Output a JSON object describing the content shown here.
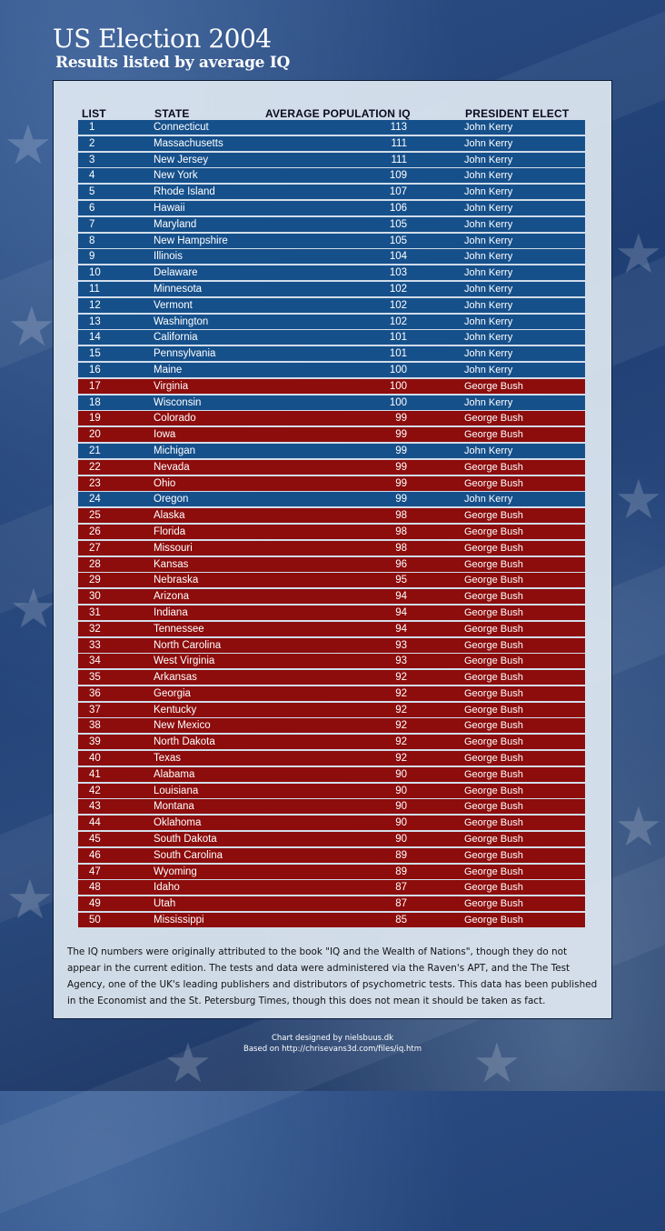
{
  "title": "US Election 2004",
  "subtitle": "Results listed by average IQ",
  "colors": {
    "kerry": "#16508b",
    "bush": "#8d0c0c"
  },
  "chart_data": {
    "type": "table",
    "columns": [
      "LIST",
      "STATE",
      "AVERAGE POPULATION IQ",
      "PRESIDENT ELECT"
    ],
    "rows": [
      {
        "rank": "1",
        "state": "Connecticut",
        "iq": "113",
        "president": "John Kerry"
      },
      {
        "rank": "2",
        "state": "Massachusetts",
        "iq": "111",
        "president": "John Kerry"
      },
      {
        "rank": "3",
        "state": "New Jersey",
        "iq": "111",
        "president": "John Kerry"
      },
      {
        "rank": "4",
        "state": "New York",
        "iq": "109",
        "president": "John Kerry"
      },
      {
        "rank": "5",
        "state": "Rhode Island",
        "iq": "107",
        "president": "John Kerry"
      },
      {
        "rank": "6",
        "state": "Hawaii",
        "iq": "106",
        "president": "John Kerry"
      },
      {
        "rank": "7",
        "state": "Maryland",
        "iq": "105",
        "president": "John Kerry"
      },
      {
        "rank": "8",
        "state": "New Hampshire",
        "iq": "105",
        "president": "John Kerry"
      },
      {
        "rank": "9",
        "state": "Illinois",
        "iq": "104",
        "president": "John Kerry"
      },
      {
        "rank": "10",
        "state": "Delaware",
        "iq": "103",
        "president": "John Kerry"
      },
      {
        "rank": "11",
        "state": "Minnesota",
        "iq": "102",
        "president": "John Kerry"
      },
      {
        "rank": "12",
        "state": "Vermont",
        "iq": "102",
        "president": "John Kerry"
      },
      {
        "rank": "13",
        "state": "Washington",
        "iq": "102",
        "president": "John Kerry"
      },
      {
        "rank": "14",
        "state": "California",
        "iq": "101",
        "president": "John Kerry"
      },
      {
        "rank": "15",
        "state": "Pennsylvania",
        "iq": "101",
        "president": "John Kerry"
      },
      {
        "rank": "16",
        "state": "Maine",
        "iq": "100",
        "president": "John Kerry"
      },
      {
        "rank": "17",
        "state": "Virginia",
        "iq": "100",
        "president": "George Bush"
      },
      {
        "rank": "18",
        "state": "Wisconsin",
        "iq": "100",
        "president": "John Kerry"
      },
      {
        "rank": "19",
        "state": "Colorado",
        "iq": "99",
        "president": "George Bush"
      },
      {
        "rank": "20",
        "state": "Iowa",
        "iq": "99",
        "president": "George Bush"
      },
      {
        "rank": "21",
        "state": "Michigan",
        "iq": "99",
        "president": "John Kerry"
      },
      {
        "rank": "22",
        "state": "Nevada",
        "iq": "99",
        "president": "George Bush"
      },
      {
        "rank": "23",
        "state": "Ohio",
        "iq": "99",
        "president": "George Bush"
      },
      {
        "rank": "24",
        "state": "Oregon",
        "iq": "99",
        "president": "John Kerry"
      },
      {
        "rank": "25",
        "state": "Alaska",
        "iq": "98",
        "president": "George Bush"
      },
      {
        "rank": "26",
        "state": "Florida",
        "iq": "98",
        "president": "George Bush"
      },
      {
        "rank": "27",
        "state": "Missouri",
        "iq": "98",
        "president": "George Bush"
      },
      {
        "rank": "28",
        "state": "Kansas",
        "iq": "96",
        "president": "George Bush"
      },
      {
        "rank": "29",
        "state": "Nebraska",
        "iq": "95",
        "president": "George Bush"
      },
      {
        "rank": "30",
        "state": "Arizona",
        "iq": "94",
        "president": "George Bush"
      },
      {
        "rank": "31",
        "state": "Indiana",
        "iq": "94",
        "president": "George Bush"
      },
      {
        "rank": "32",
        "state": "Tennessee",
        "iq": "94",
        "president": "George Bush"
      },
      {
        "rank": "33",
        "state": "North Carolina",
        "iq": "93",
        "president": "George Bush"
      },
      {
        "rank": "34",
        "state": "West Virginia",
        "iq": "93",
        "president": "George Bush"
      },
      {
        "rank": "35",
        "state": "Arkansas",
        "iq": "92",
        "president": "George Bush"
      },
      {
        "rank": "36",
        "state": "Georgia",
        "iq": "92",
        "president": "George Bush"
      },
      {
        "rank": "37",
        "state": "Kentucky",
        "iq": "92",
        "president": "George Bush"
      },
      {
        "rank": "38",
        "state": "New Mexico",
        "iq": "92",
        "president": "George Bush"
      },
      {
        "rank": "39",
        "state": "North Dakota",
        "iq": "92",
        "president": "George Bush"
      },
      {
        "rank": "40",
        "state": "Texas",
        "iq": "92",
        "president": "George Bush"
      },
      {
        "rank": "41",
        "state": "Alabama",
        "iq": "90",
        "president": "George Bush"
      },
      {
        "rank": "42",
        "state": "Louisiana",
        "iq": "90",
        "president": "George Bush"
      },
      {
        "rank": "43",
        "state": "Montana",
        "iq": "90",
        "president": "George Bush"
      },
      {
        "rank": "44",
        "state": "Oklahoma",
        "iq": "90",
        "president": "George Bush"
      },
      {
        "rank": "45",
        "state": "South Dakota",
        "iq": "90",
        "president": "George Bush"
      },
      {
        "rank": "46",
        "state": "South Carolina",
        "iq": "89",
        "president": "George Bush"
      },
      {
        "rank": "47",
        "state": "Wyoming",
        "iq": "89",
        "president": "George Bush"
      },
      {
        "rank": "48",
        "state": "Idaho",
        "iq": "87",
        "president": "George Bush"
      },
      {
        "rank": "49",
        "state": "Utah",
        "iq": "87",
        "president": "George Bush"
      },
      {
        "rank": "50",
        "state": "Mississippi",
        "iq": "85",
        "president": "George Bush"
      }
    ]
  },
  "footnote": "The IQ numbers were originally attributed to the book \"IQ and the Wealth of Nations\", though they do not appear in the current edition. The tests and data were administered via the Raven's APT, and the The Test Agency, one of the UK's leading publishers and distributors of psychometric tests. This data has been published in the Economist and the St. Petersburg Times, though this does not mean it should be taken as fact.",
  "credit": {
    "line1": "Chart designed by nielsbuus.dk",
    "line2": "Based on http://chrisevans3d.com/files/iq.htm"
  }
}
